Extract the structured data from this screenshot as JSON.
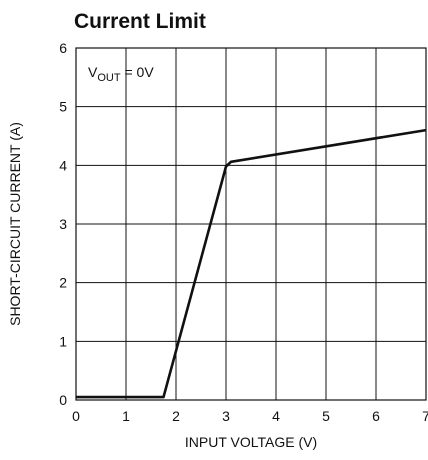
{
  "chart_data": {
    "type": "line",
    "title": "Current Limit",
    "xlabel": "INPUT VOLTAGE (V)",
    "ylabel": "SHORT-CIRCUIT CURRENT (A)",
    "xlim": [
      0,
      7
    ],
    "ylim": [
      0,
      6
    ],
    "xticks": [
      "0",
      "1",
      "2",
      "3",
      "4",
      "5",
      "6",
      "7"
    ],
    "yticks": [
      "0",
      "1",
      "2",
      "3",
      "4",
      "5",
      "6"
    ],
    "grid": true,
    "annotation": {
      "prefix": "V",
      "subscript": "OUT",
      "suffix": " = 0V"
    },
    "series": [
      {
        "x": [
          0,
          1.75,
          3.0,
          3.1,
          7.0
        ],
        "y": [
          0.05,
          0.05,
          3.98,
          4.06,
          4.6
        ]
      }
    ]
  }
}
